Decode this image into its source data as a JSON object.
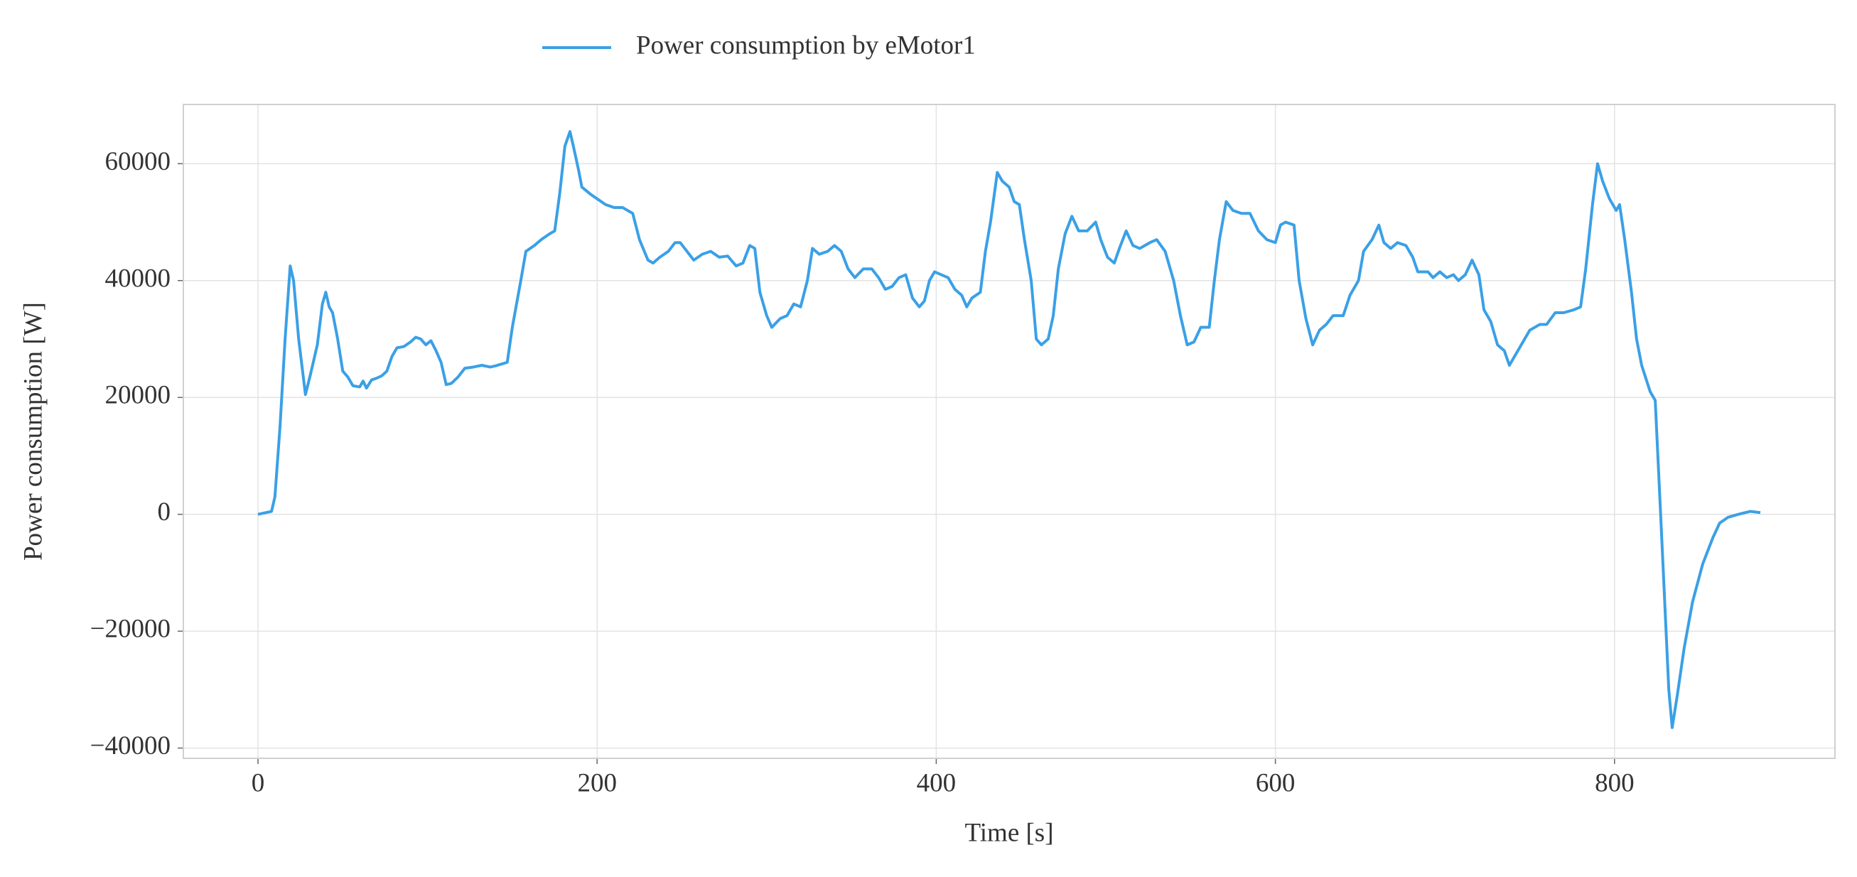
{
  "chart_data": {
    "type": "line",
    "xlabel": "Time [s]",
    "ylabel": "Power consumption [W]",
    "xlim": [
      -44,
      930
    ],
    "ylim": [
      -41755,
      70135
    ],
    "xticks": [
      0,
      200,
      400,
      600,
      800
    ],
    "yticks": [
      {
        "value": -40000,
        "label": "−40000"
      },
      {
        "value": -20000,
        "label": "−20000"
      },
      0,
      20000,
      40000,
      60000
    ],
    "grid": true,
    "legend": "upper left",
    "x": [
      0,
      8,
      10,
      13,
      16,
      19,
      21,
      24,
      28,
      31,
      35,
      38,
      40,
      42,
      44,
      47,
      50,
      53,
      56,
      60,
      62,
      64,
      67,
      70,
      73,
      76,
      79,
      82,
      86,
      90,
      93,
      96,
      99,
      102,
      105,
      108,
      111,
      114,
      118,
      122,
      127,
      132,
      137,
      140,
      147,
      150,
      155,
      158,
      163,
      167,
      172,
      175,
      178,
      181,
      184,
      186,
      189,
      191,
      196,
      200,
      205,
      210,
      215,
      221,
      225,
      230,
      233,
      237,
      242,
      246,
      249,
      253,
      257,
      262,
      267,
      272,
      277,
      282,
      286,
      290,
      293,
      296,
      300,
      303,
      308,
      312,
      316,
      320,
      324,
      327,
      331,
      336,
      340,
      344,
      348,
      352,
      357,
      362,
      366,
      370,
      374,
      378,
      382,
      386,
      390,
      393,
      396,
      399,
      403,
      407,
      411,
      415,
      418,
      421,
      426,
      429,
      432,
      436,
      439,
      443,
      446,
      449,
      452,
      456,
      459,
      462,
      466,
      469,
      472,
      476,
      480,
      484,
      489,
      494,
      497,
      501,
      505,
      508,
      512,
      516,
      520,
      526,
      530,
      535,
      540,
      544,
      548,
      552,
      556,
      561,
      564,
      567,
      571,
      575,
      580,
      585,
      590,
      595,
      600,
      603,
      606,
      611,
      614,
      618,
      622,
      626,
      630,
      634,
      640,
      644,
      649,
      652,
      657,
      661,
      664,
      668,
      672,
      677,
      681,
      684,
      690,
      693,
      697,
      701,
      705,
      708,
      712,
      716,
      720,
      723,
      727,
      731,
      735,
      738,
      741,
      745,
      750,
      756,
      760,
      765,
      770,
      776,
      780,
      783,
      787,
      790,
      793,
      797,
      801,
      803,
      806,
      810,
      813,
      816,
      821,
      824,
      828,
      832,
      834,
      837,
      841,
      846,
      852,
      858,
      862,
      867,
      873,
      880,
      886
    ],
    "series": [
      {
        "name": "Power consumption by eMotor1",
        "color": "#3aa0e6",
        "values": [
          0,
          500,
          3000,
          15000,
          30000,
          42500,
          40000,
          30000,
          20500,
          24000,
          29000,
          36000,
          38000,
          35500,
          34500,
          30000,
          24500,
          23500,
          22000,
          21800,
          22800,
          21600,
          23000,
          23300,
          23700,
          24500,
          27000,
          28500,
          28700,
          29500,
          30300,
          30000,
          29000,
          29700,
          28000,
          26000,
          22200,
          22400,
          23500,
          25000,
          25200,
          25500,
          25200,
          25400,
          26000,
          32000,
          40000,
          45000,
          46000,
          47000,
          48000,
          48500,
          55000,
          63000,
          65500,
          63000,
          59000,
          56000,
          54800,
          54000,
          53000,
          52500,
          52500,
          51500,
          47000,
          43500,
          43000,
          44000,
          45000,
          46500,
          46500,
          45000,
          43500,
          44500,
          45000,
          44000,
          44200,
          42500,
          43000,
          46000,
          45500,
          38000,
          34000,
          32000,
          33500,
          34000,
          36000,
          35500,
          40000,
          45500,
          44500,
          45000,
          46000,
          45000,
          42000,
          40500,
          42000,
          42000,
          40500,
          38500,
          39000,
          40500,
          41000,
          37000,
          35500,
          36500,
          40000,
          41500,
          41000,
          40500,
          38500,
          37500,
          35500,
          37000,
          38000,
          45000,
          50000,
          58500,
          57000,
          56000,
          53500,
          53000,
          47000,
          40000,
          30000,
          29000,
          30000,
          34000,
          42000,
          48000,
          51000,
          48500,
          48500,
          50000,
          47000,
          44000,
          43000,
          45500,
          48500,
          46000,
          45500,
          46500,
          47000,
          45000,
          40000,
          34000,
          29000,
          29500,
          32000,
          32000,
          40000,
          47000,
          53500,
          52000,
          51500,
          51500,
          48500,
          47000,
          46500,
          49500,
          50000,
          49500,
          40000,
          33500,
          29000,
          31500,
          32500,
          34000,
          34000,
          37500,
          40000,
          45000,
          47000,
          49500,
          46500,
          45500,
          46500,
          46000,
          44000,
          41500,
          41500,
          40500,
          41500,
          40500,
          41000,
          40000,
          41000,
          43500,
          41000,
          35000,
          33000,
          29000,
          28000,
          25500,
          27000,
          29000,
          31500,
          32500,
          32500,
          34500,
          34500,
          35000,
          35500,
          42000,
          53000,
          60000,
          57000,
          54000,
          52000,
          53000,
          47000,
          38000,
          30000,
          25500,
          21000,
          19500,
          -5000,
          -30000,
          -36500,
          -31000,
          -23000,
          -15000,
          -8500,
          -4000,
          -1500,
          -500,
          0,
          500,
          300
        ]
      }
    ]
  }
}
